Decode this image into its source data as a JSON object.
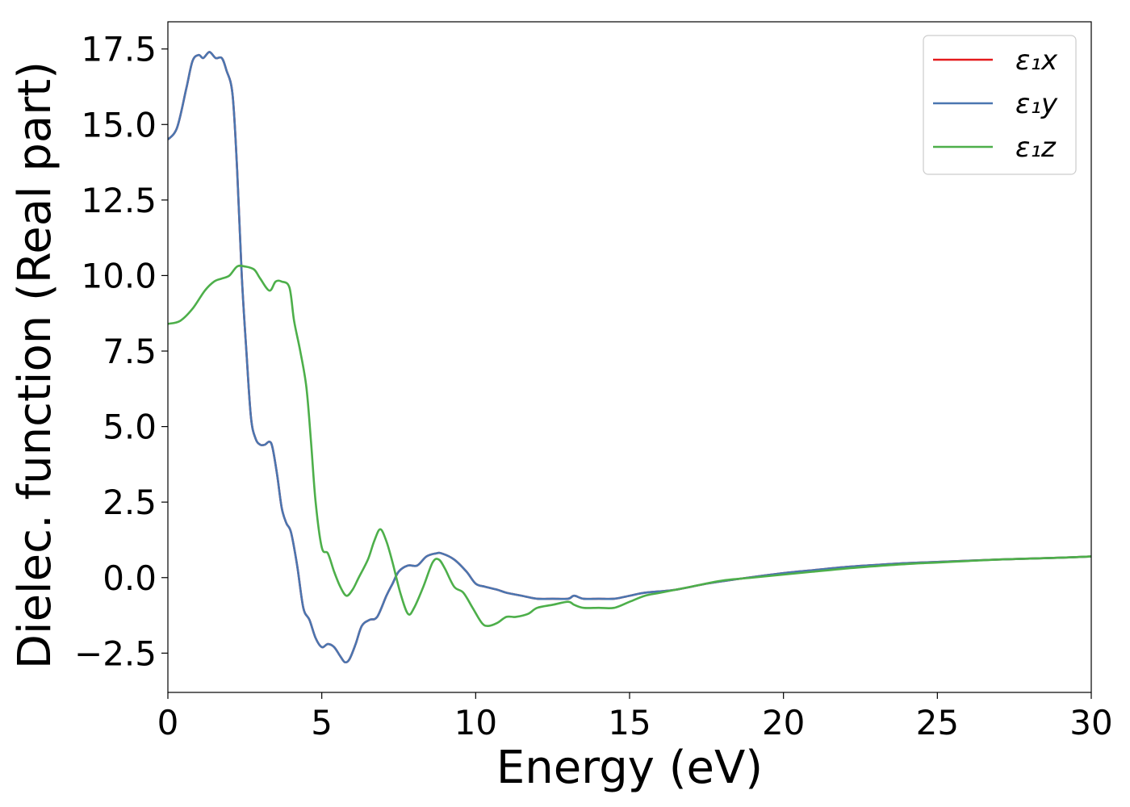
{
  "chart_data": {
    "type": "line",
    "title": "",
    "xlabel": "Energy (eV)",
    "ylabel": "Dielec. function (Real part)",
    "xlim": [
      0,
      30
    ],
    "ylim": [
      -3.8,
      18.4
    ],
    "xticks": [
      0,
      5,
      10,
      15,
      20,
      25,
      30
    ],
    "xtick_labels": [
      "0",
      "5",
      "10",
      "15",
      "20",
      "25",
      "30"
    ],
    "yticks": [
      -2.5,
      0.0,
      2.5,
      5.0,
      7.5,
      10.0,
      12.5,
      15.0,
      17.5
    ],
    "ytick_labels": [
      "−2.5",
      "0.0",
      "2.5",
      "5.0",
      "7.5",
      "10.0",
      "12.5",
      "15.0",
      "17.5"
    ],
    "grid": false,
    "legend_position": "top-right",
    "series": [
      {
        "name": "ε₁x",
        "color": "#e41a1c",
        "x": [
          0,
          0.3,
          0.6,
          0.8,
          1.0,
          1.15,
          1.35,
          1.55,
          1.75,
          1.9,
          2.1,
          2.25,
          2.4,
          2.55,
          2.7,
          2.85,
          3.0,
          3.15,
          3.3,
          3.4,
          3.55,
          3.7,
          3.85,
          4.0,
          4.2,
          4.4,
          4.6,
          4.8,
          5.0,
          5.2,
          5.4,
          5.6,
          5.75,
          5.9,
          6.1,
          6.3,
          6.55,
          6.8,
          7.1,
          7.3,
          7.5,
          7.8,
          8.1,
          8.4,
          8.7,
          8.9,
          9.3,
          9.7,
          10.0,
          10.3,
          10.7,
          11.0,
          11.5,
          12.0,
          12.5,
          13.0,
          13.2,
          13.5,
          14.0,
          14.5,
          15.0,
          15.5,
          16.5,
          17.5,
          18.5,
          20.0,
          21.0,
          22.0,
          23.0,
          24.0,
          25.0,
          26.0,
          27.0,
          28.0,
          29.0,
          30.0
        ],
        "y": [
          14.5,
          14.9,
          16.2,
          17.1,
          17.3,
          17.2,
          17.4,
          17.2,
          17.2,
          16.8,
          16.0,
          13.5,
          10.0,
          7.5,
          5.3,
          4.6,
          4.4,
          4.4,
          4.5,
          4.3,
          3.4,
          2.3,
          1.8,
          1.5,
          0.4,
          -1.0,
          -1.4,
          -2.0,
          -2.3,
          -2.2,
          -2.3,
          -2.6,
          -2.8,
          -2.7,
          -2.2,
          -1.6,
          -1.4,
          -1.3,
          -0.6,
          -0.2,
          0.2,
          0.4,
          0.4,
          0.7,
          0.8,
          0.8,
          0.6,
          0.2,
          -0.2,
          -0.3,
          -0.4,
          -0.5,
          -0.6,
          -0.7,
          -0.7,
          -0.7,
          -0.6,
          -0.7,
          -0.7,
          -0.7,
          -0.6,
          -0.5,
          -0.4,
          -0.2,
          -0.05,
          0.15,
          0.25,
          0.35,
          0.42,
          0.48,
          0.52,
          0.56,
          0.6,
          0.63,
          0.66,
          0.7
        ]
      },
      {
        "name": "ε₁y",
        "color": "#4a76b0",
        "x": [
          0,
          0.3,
          0.6,
          0.8,
          1.0,
          1.15,
          1.35,
          1.55,
          1.75,
          1.9,
          2.1,
          2.25,
          2.4,
          2.55,
          2.7,
          2.85,
          3.0,
          3.15,
          3.3,
          3.4,
          3.55,
          3.7,
          3.85,
          4.0,
          4.2,
          4.4,
          4.6,
          4.8,
          5.0,
          5.2,
          5.4,
          5.6,
          5.75,
          5.9,
          6.1,
          6.3,
          6.55,
          6.8,
          7.1,
          7.3,
          7.5,
          7.8,
          8.1,
          8.4,
          8.7,
          8.9,
          9.3,
          9.7,
          10.0,
          10.3,
          10.7,
          11.0,
          11.5,
          12.0,
          12.5,
          13.0,
          13.2,
          13.5,
          14.0,
          14.5,
          15.0,
          15.5,
          16.5,
          17.5,
          18.5,
          20.0,
          21.0,
          22.0,
          23.0,
          24.0,
          25.0,
          26.0,
          27.0,
          28.0,
          29.0,
          30.0
        ],
        "y": [
          14.5,
          14.9,
          16.2,
          17.1,
          17.3,
          17.2,
          17.4,
          17.2,
          17.2,
          16.8,
          16.0,
          13.5,
          10.0,
          7.5,
          5.3,
          4.6,
          4.4,
          4.4,
          4.5,
          4.3,
          3.4,
          2.3,
          1.8,
          1.5,
          0.4,
          -1.0,
          -1.4,
          -2.0,
          -2.3,
          -2.2,
          -2.3,
          -2.6,
          -2.8,
          -2.7,
          -2.2,
          -1.6,
          -1.4,
          -1.3,
          -0.6,
          -0.2,
          0.2,
          0.4,
          0.4,
          0.7,
          0.8,
          0.8,
          0.6,
          0.2,
          -0.2,
          -0.3,
          -0.4,
          -0.5,
          -0.6,
          -0.7,
          -0.7,
          -0.7,
          -0.6,
          -0.7,
          -0.7,
          -0.7,
          -0.6,
          -0.5,
          -0.4,
          -0.2,
          -0.05,
          0.15,
          0.25,
          0.35,
          0.42,
          0.48,
          0.52,
          0.56,
          0.6,
          0.63,
          0.66,
          0.7
        ]
      },
      {
        "name": "ε₁z",
        "color": "#4daf4a",
        "x": [
          0,
          0.4,
          0.8,
          1.2,
          1.5,
          1.75,
          2.0,
          2.25,
          2.5,
          2.8,
          3.0,
          3.3,
          3.5,
          3.7,
          3.95,
          4.1,
          4.3,
          4.5,
          4.65,
          4.8,
          5.0,
          5.2,
          5.4,
          5.6,
          5.8,
          6.0,
          6.2,
          6.5,
          6.7,
          6.9,
          7.1,
          7.3,
          7.55,
          7.8,
          8.0,
          8.3,
          8.6,
          8.8,
          9.0,
          9.3,
          9.6,
          9.9,
          10.2,
          10.4,
          10.7,
          11.0,
          11.3,
          11.7,
          12.0,
          12.5,
          13.0,
          13.2,
          13.5,
          14.0,
          14.5,
          15.0,
          15.5,
          16.0,
          17.0,
          18.0,
          19.0,
          20.0,
          21.0,
          22.0,
          23.0,
          24.0,
          25.0,
          26.0,
          27.0,
          28.0,
          29.0,
          30.0
        ],
        "y": [
          8.4,
          8.5,
          8.9,
          9.5,
          9.8,
          9.9,
          10.0,
          10.3,
          10.3,
          10.2,
          9.9,
          9.5,
          9.8,
          9.8,
          9.6,
          8.5,
          7.5,
          6.3,
          4.5,
          2.5,
          1.0,
          0.8,
          0.2,
          -0.3,
          -0.6,
          -0.4,
          0.0,
          0.6,
          1.2,
          1.6,
          1.2,
          0.5,
          -0.5,
          -1.2,
          -1.0,
          -0.3,
          0.5,
          0.6,
          0.3,
          -0.3,
          -0.5,
          -1.0,
          -1.5,
          -1.6,
          -1.5,
          -1.3,
          -1.3,
          -1.2,
          -1.0,
          -0.9,
          -0.8,
          -0.9,
          -1.0,
          -1.0,
          -1.0,
          -0.8,
          -0.6,
          -0.5,
          -0.3,
          -0.1,
          0.0,
          0.1,
          0.2,
          0.3,
          0.38,
          0.45,
          0.5,
          0.55,
          0.6,
          0.63,
          0.66,
          0.7
        ]
      }
    ]
  }
}
